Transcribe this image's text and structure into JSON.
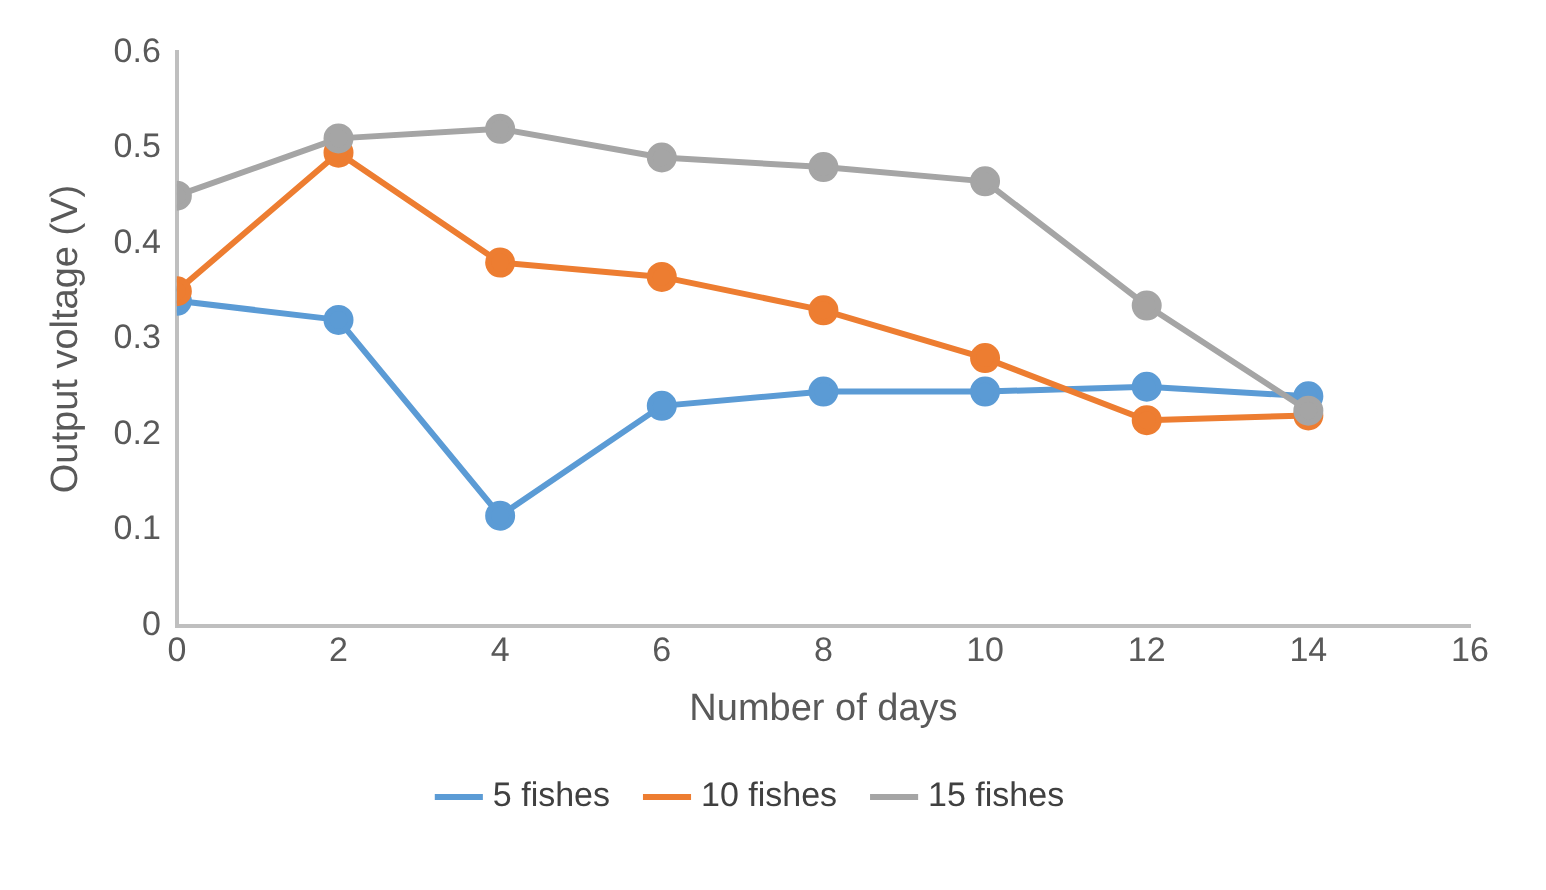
{
  "chart_data": {
    "type": "line",
    "xlabel": "Number of days",
    "ylabel": "Output voltage (V)",
    "x": [
      0,
      2,
      4,
      6,
      8,
      10,
      12,
      14
    ],
    "series": [
      {
        "name": "5 fishes",
        "color": "#5b9bd5",
        "values": [
          0.34,
          0.32,
          0.115,
          0.23,
          0.245,
          0.245,
          0.25,
          0.24
        ]
      },
      {
        "name": "10 fishes",
        "color": "#ed7d31",
        "values": [
          0.35,
          0.495,
          0.38,
          0.365,
          0.33,
          0.28,
          0.215,
          0.22
        ]
      },
      {
        "name": "15 fishes",
        "color": "#a5a5a5",
        "values": [
          0.45,
          0.51,
          0.52,
          0.49,
          0.48,
          0.465,
          0.335,
          0.225
        ]
      }
    ],
    "xlim": [
      0,
      16
    ],
    "xticks": [
      0,
      2,
      4,
      6,
      8,
      10,
      12,
      14,
      16
    ],
    "ylim": [
      0,
      0.6
    ],
    "yticks": [
      0,
      0.1,
      0.2,
      0.3,
      0.4,
      0.5,
      0.6
    ],
    "grid": false,
    "legend": "bottom",
    "marker": "circle",
    "line_style": "solid"
  }
}
